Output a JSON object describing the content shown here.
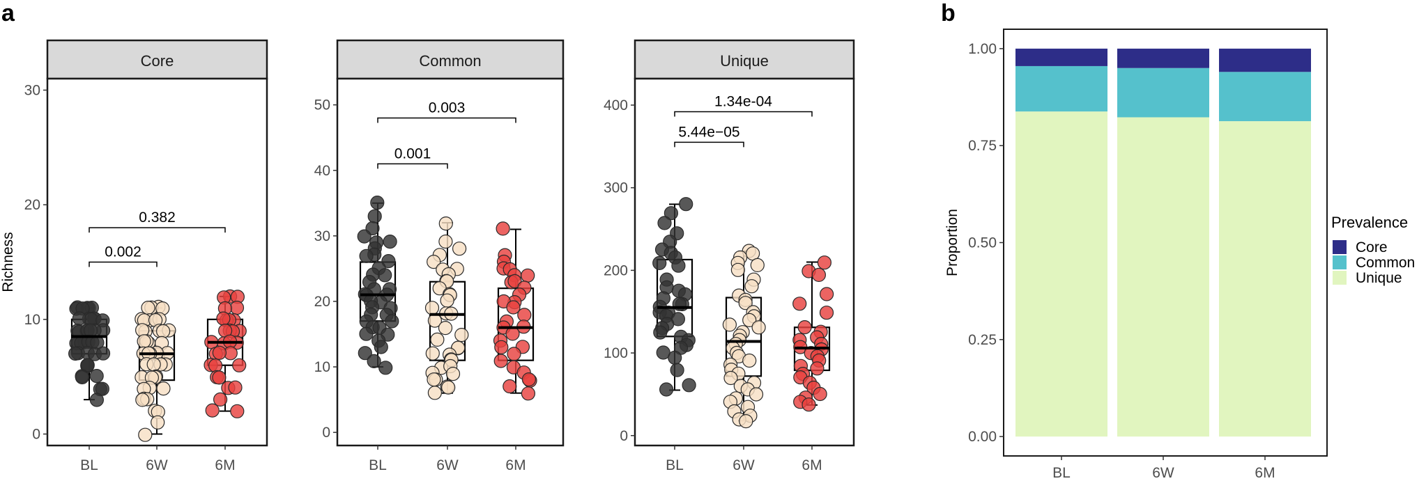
{
  "panel_labels": {
    "a": "a",
    "b": "b"
  },
  "chart_data": [
    {
      "type": "boxplot",
      "panel": "a",
      "facet": "Core",
      "ylabel": "Richness",
      "categories": [
        "BL",
        "6W",
        "6M"
      ],
      "ylim": [
        -1,
        31
      ],
      "yticks": [
        0,
        10,
        20,
        30
      ],
      "box_stats": [
        {
          "group": "BL",
          "min": 3,
          "q1": 7,
          "median": 8.5,
          "q3": 10,
          "max": 11
        },
        {
          "group": "6W",
          "min": 0,
          "q1": 4.7,
          "median": 7,
          "q3": 9,
          "max": 11
        },
        {
          "group": "6M",
          "min": 2,
          "q1": 6,
          "median": 8,
          "q3": 10,
          "max": 12
        }
      ],
      "points": {
        "BL": [
          11,
          11,
          11,
          11,
          11,
          11,
          10,
          10,
          10,
          10,
          10,
          10,
          9,
          9,
          9,
          9,
          9,
          9,
          9,
          8,
          8,
          8,
          8,
          8,
          8,
          8,
          7,
          7,
          7,
          7,
          7,
          6,
          6,
          6,
          5,
          5,
          5,
          4,
          4,
          3
        ],
        "6W": [
          11,
          11,
          11,
          11,
          10,
          10,
          10,
          10,
          10,
          9,
          9,
          9,
          9,
          9,
          8,
          8,
          8,
          8,
          7,
          7,
          7,
          7,
          7,
          7,
          6,
          6,
          6,
          6,
          5,
          5,
          5,
          5,
          4,
          4,
          4,
          3,
          3,
          3,
          2,
          2,
          1,
          0
        ],
        "6M": [
          12,
          12,
          12,
          11,
          11,
          10,
          10,
          10,
          10,
          9,
          9,
          9,
          9,
          8,
          8,
          8,
          8,
          7,
          7,
          7,
          6,
          6,
          6,
          5,
          5,
          4,
          4,
          3,
          2,
          2
        ]
      },
      "comparisons": [
        {
          "from": "BL",
          "to": "6W",
          "y": 15,
          "label": "0.002"
        },
        {
          "from": "BL",
          "to": "6M",
          "y": 18,
          "label": "0.382"
        }
      ]
    },
    {
      "type": "boxplot",
      "panel": "a",
      "facet": "Common",
      "categories": [
        "BL",
        "6W",
        "6M"
      ],
      "ylim": [
        -2,
        54
      ],
      "yticks": [
        0,
        10,
        20,
        30,
        40,
        50
      ],
      "box_stats": [
        {
          "group": "BL",
          "min": 10,
          "q1": 17,
          "median": 21,
          "q3": 26,
          "max": 35
        },
        {
          "group": "6W",
          "min": 6,
          "q1": 11,
          "median": 18,
          "q3": 23,
          "max": 32
        },
        {
          "group": "6M",
          "min": 6,
          "q1": 11,
          "median": 16,
          "q3": 22,
          "max": 31
        }
      ],
      "points": {
        "BL": [
          35,
          33,
          31,
          30,
          29,
          29,
          28,
          27,
          27,
          26,
          25,
          24,
          24,
          23,
          22,
          22,
          21,
          21,
          21,
          20,
          20,
          19,
          19,
          18,
          18,
          17,
          17,
          16,
          16,
          15,
          15,
          14,
          13,
          12,
          11,
          10
        ],
        "6W": [
          32,
          29,
          28,
          27,
          26,
          25,
          25,
          24,
          23,
          23,
          22,
          21,
          21,
          20,
          19,
          18,
          18,
          17,
          16,
          15,
          14,
          13,
          13,
          12,
          12,
          11,
          11,
          10,
          10,
          9,
          9,
          8,
          8,
          7,
          7,
          6
        ],
        "6M": [
          31,
          27,
          26,
          25,
          25,
          24,
          24,
          23,
          23,
          22,
          21,
          20,
          20,
          19,
          18,
          17,
          16,
          16,
          15,
          14,
          13,
          13,
          12,
          11,
          10,
          9,
          8,
          8,
          7,
          6
        ]
      },
      "comparisons": [
        {
          "from": "BL",
          "to": "6W",
          "y": 41,
          "label": "0.001"
        },
        {
          "from": "BL",
          "to": "6M",
          "y": 48,
          "label": "0.003"
        }
      ]
    },
    {
      "type": "boxplot",
      "panel": "a",
      "facet": "Unique",
      "categories": [
        "BL",
        "6W",
        "6M"
      ],
      "ylim": [
        -12,
        432
      ],
      "yticks": [
        0,
        100,
        200,
        300,
        400
      ],
      "box_stats": [
        {
          "group": "BL",
          "min": 55,
          "q1": 120,
          "median": 155,
          "q3": 213,
          "max": 280
        },
        {
          "group": "6W",
          "min": 18,
          "q1": 72,
          "median": 114,
          "q3": 167,
          "max": 223
        },
        {
          "group": "6M",
          "min": 37,
          "q1": 79,
          "median": 106,
          "q3": 131,
          "max": 210
        }
      ],
      "points": {
        "BL": [
          280,
          270,
          258,
          245,
          235,
          225,
          220,
          215,
          210,
          205,
          190,
          180,
          175,
          170,
          165,
          160,
          158,
          155,
          150,
          148,
          145,
          140,
          135,
          130,
          125,
          120,
          115,
          110,
          105,
          100,
          95,
          80,
          62,
          55
        ],
        "6W": [
          223,
          220,
          215,
          210,
          205,
          200,
          190,
          180,
          170,
          165,
          160,
          150,
          145,
          140,
          135,
          130,
          125,
          120,
          115,
          110,
          105,
          100,
          95,
          90,
          85,
          80,
          75,
          70,
          65,
          60,
          55,
          50,
          45,
          40,
          35,
          30,
          25,
          20,
          18
        ],
        "6M": [
          210,
          200,
          195,
          170,
          160,
          150,
          130,
          125,
          120,
          115,
          110,
          108,
          105,
          100,
          95,
          90,
          85,
          80,
          75,
          70,
          65,
          58,
          50,
          45,
          40,
          37
        ]
      },
      "comparisons": [
        {
          "from": "BL",
          "to": "6W",
          "y": 355,
          "label": "5.44e−05"
        },
        {
          "from": "BL",
          "to": "6M",
          "y": 392,
          "label": "1.34e-04"
        }
      ]
    },
    {
      "type": "bar",
      "stacked": true,
      "panel": "b",
      "ylabel": "Proportion",
      "categories": [
        "BL",
        "6W",
        "6M"
      ],
      "ylim": [
        -0.05,
        1.05
      ],
      "yticks": [
        "0.00",
        "0.25",
        "0.50",
        "0.75",
        "1.00"
      ],
      "legend": {
        "title": "Prevalence",
        "position": "right"
      },
      "series": [
        {
          "name": "Unique",
          "values": [
            0.838,
            0.823,
            0.813
          ],
          "color": "#e1f5bf"
        },
        {
          "name": "Common",
          "values": [
            0.117,
            0.127,
            0.127
          ],
          "color": "#55c1cc"
        },
        {
          "name": "Core",
          "values": [
            0.045,
            0.05,
            0.06
          ],
          "color": "#2d2d88"
        }
      ],
      "legend_order": [
        "Core",
        "Common",
        "Unique"
      ]
    }
  ],
  "colors": {
    "BL": "#333333",
    "6W": "#f7dfc4",
    "6M": "#e8423f",
    "strip_fill": "#d9d9d9"
  }
}
